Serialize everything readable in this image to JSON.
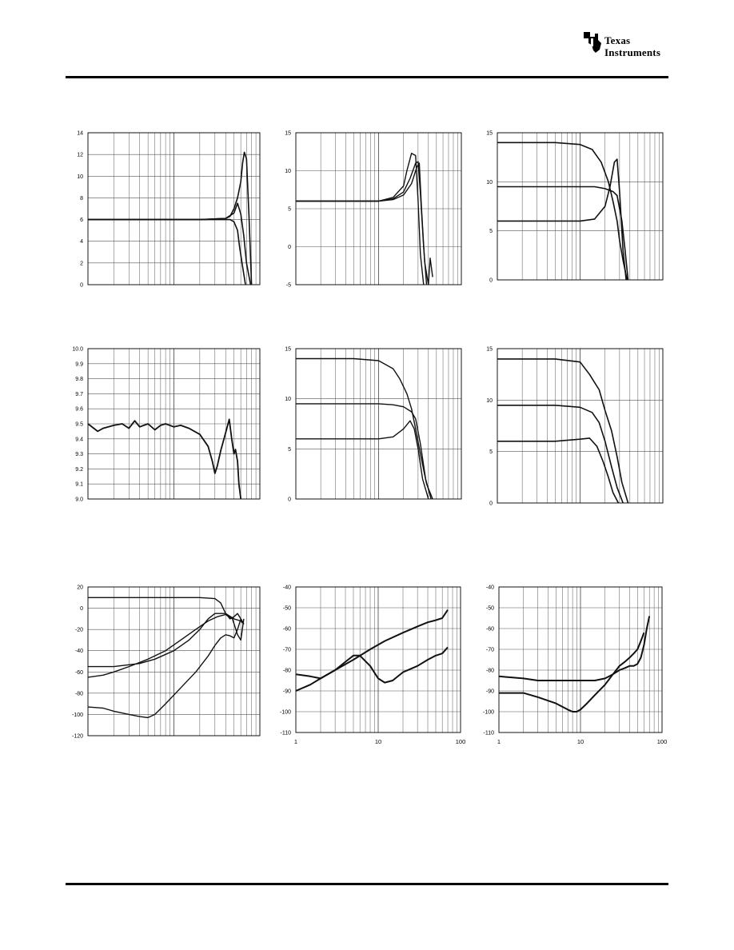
{
  "logo": {
    "line1": "Texas",
    "line2": "Instruments",
    "mark": "ti-logo-icon"
  },
  "chart_data": [
    {
      "id": "c1",
      "type": "line",
      "ylim": [
        0,
        14
      ],
      "yticks": [
        0,
        2,
        4,
        6,
        8,
        10,
        12,
        14
      ],
      "xlog": true,
      "xdecades": 2,
      "xticks_labeled": false,
      "series": [
        {
          "x": [
            1,
            5,
            20,
            40,
            45,
            50,
            55,
            60,
            63,
            66,
            70,
            75,
            80
          ],
          "y": [
            6,
            6,
            6,
            6.1,
            6.3,
            7,
            8,
            9.5,
            11.2,
            12.2,
            11.6,
            6,
            0
          ]
        },
        {
          "x": [
            1,
            5,
            20,
            40,
            45,
            50,
            55,
            58,
            62,
            68
          ],
          "y": [
            6,
            6,
            6,
            6,
            6,
            5.8,
            5,
            3.5,
            2,
            0
          ]
        },
        {
          "x": [
            1,
            5,
            20,
            40,
            50,
            55,
            60,
            65,
            70,
            78
          ],
          "y": [
            6,
            6,
            6,
            6.1,
            6.6,
            7.5,
            6.5,
            4.5,
            2,
            0
          ]
        }
      ]
    },
    {
      "id": "c2",
      "type": "line",
      "ylim": [
        -5,
        15
      ],
      "yticks": [
        -5,
        0,
        5,
        10,
        15
      ],
      "xlog": true,
      "xdecades": 2,
      "xticks_labeled": false,
      "series": [
        {
          "x": [
            1,
            3,
            10,
            15,
            20,
            22,
            25,
            28,
            30,
            32,
            35
          ],
          "y": [
            6,
            6,
            6,
            6.5,
            8,
            10,
            12.3,
            12,
            6,
            -1,
            -5
          ]
        },
        {
          "x": [
            1,
            3,
            10,
            15,
            20,
            24,
            28,
            30,
            32,
            35,
            38
          ],
          "y": [
            6,
            6,
            6,
            6.3,
            7.2,
            9,
            11,
            11.2,
            7,
            0,
            -5
          ]
        },
        {
          "x": [
            1,
            3,
            10,
            15,
            20,
            25,
            29,
            31,
            33,
            36,
            40,
            42,
            45
          ],
          "y": [
            6,
            6,
            6,
            6.2,
            6.8,
            8.3,
            10.5,
            11,
            5,
            -2,
            -5,
            -1.5,
            -4
          ]
        }
      ]
    },
    {
      "id": "c3",
      "type": "line",
      "ylim": [
        0,
        15
      ],
      "yticks": [
        0,
        5,
        10,
        15
      ],
      "xlog": true,
      "xdecades": 2,
      "xticks_labeled": false,
      "series": [
        {
          "x": [
            1,
            5,
            10,
            14,
            18,
            22,
            25,
            28,
            30,
            33,
            37
          ],
          "y": [
            14,
            14,
            13.8,
            13.3,
            12,
            10,
            8,
            6,
            4,
            2,
            0
          ]
        },
        {
          "x": [
            1,
            5,
            10,
            15,
            20,
            25,
            28,
            32,
            35,
            38
          ],
          "y": [
            9.5,
            9.5,
            9.5,
            9.5,
            9.3,
            9,
            8.6,
            6,
            3,
            0
          ]
        },
        {
          "x": [
            1,
            5,
            10,
            15,
            20,
            23,
            26,
            28,
            30,
            33,
            36
          ],
          "y": [
            6,
            6,
            6,
            6.2,
            7.5,
            9.5,
            12,
            12.3,
            9,
            3,
            0
          ]
        }
      ]
    },
    {
      "id": "c4",
      "type": "line",
      "ylim": [
        9.0,
        10.0
      ],
      "yticks": [
        9.0,
        9.1,
        9.2,
        9.3,
        9.4,
        9.5,
        9.6,
        9.7,
        9.8,
        9.9,
        10.0
      ],
      "xlog": true,
      "xdecades": 2,
      "xticks_labeled": false,
      "series": [
        {
          "x": [
            1,
            1.3,
            1.5,
            2,
            2.5,
            3,
            3.5,
            4,
            5,
            6,
            7,
            8,
            10,
            12,
            15,
            20,
            25,
            28,
            30,
            32,
            35,
            40,
            44,
            47,
            50,
            52,
            55,
            57,
            60
          ],
          "y": [
            9.5,
            9.45,
            9.47,
            9.49,
            9.5,
            9.47,
            9.52,
            9.48,
            9.5,
            9.46,
            9.49,
            9.5,
            9.48,
            9.49,
            9.47,
            9.43,
            9.35,
            9.25,
            9.17,
            9.22,
            9.32,
            9.44,
            9.53,
            9.4,
            9.3,
            9.33,
            9.25,
            9.1,
            9.0
          ]
        }
      ]
    },
    {
      "id": "c5",
      "type": "line",
      "ylim": [
        0,
        15
      ],
      "yticks": [
        0,
        5,
        10,
        15
      ],
      "xlog": true,
      "xdecades": 2,
      "xticks_labeled": false,
      "series": [
        {
          "x": [
            1,
            5,
            10,
            15,
            18,
            22,
            25,
            28,
            32,
            38,
            45
          ],
          "y": [
            14,
            14,
            13.8,
            13,
            12,
            10.5,
            9,
            7,
            4.5,
            1.5,
            0
          ]
        },
        {
          "x": [
            1,
            5,
            10,
            15,
            20,
            25,
            28,
            32,
            37,
            43
          ],
          "y": [
            9.5,
            9.5,
            9.5,
            9.4,
            9.2,
            8.7,
            8,
            5.5,
            2,
            0
          ]
        },
        {
          "x": [
            1,
            5,
            10,
            15,
            20,
            24,
            27,
            30,
            34,
            40
          ],
          "y": [
            6,
            6,
            6,
            6.2,
            7,
            7.8,
            7,
            5,
            2,
            0
          ]
        }
      ]
    },
    {
      "id": "c6",
      "type": "line",
      "ylim": [
        0,
        15
      ],
      "yticks": [
        0,
        5,
        10,
        15
      ],
      "xlog": true,
      "xdecades": 2,
      "xticks_labeled": false,
      "series": [
        {
          "x": [
            1,
            5,
            10,
            13,
            17,
            20,
            24,
            28,
            32,
            38
          ],
          "y": [
            14,
            14,
            13.7,
            12.5,
            11,
            9,
            7,
            4.5,
            2,
            0
          ]
        },
        {
          "x": [
            1,
            5,
            10,
            14,
            17,
            20,
            24,
            28,
            33
          ],
          "y": [
            9.5,
            9.5,
            9.3,
            8.8,
            7.8,
            6,
            3.5,
            1.5,
            0
          ]
        },
        {
          "x": [
            1,
            5,
            10,
            13,
            16,
            19,
            22,
            25,
            29
          ],
          "y": [
            6,
            6,
            6.2,
            6.3,
            5.5,
            4,
            2.5,
            1,
            0
          ]
        }
      ]
    },
    {
      "id": "c7",
      "type": "line",
      "ylim": [
        -120,
        20
      ],
      "yticks": [
        -120,
        -100,
        -80,
        -60,
        -40,
        -20,
        0,
        20
      ],
      "xlog": true,
      "xdecades": 2,
      "xticks_labeled": false,
      "series": [
        {
          "x": [
            1,
            5,
            10,
            20,
            30,
            35,
            40,
            45,
            50,
            55,
            60,
            65
          ],
          "y": [
            10,
            10,
            10,
            10,
            9,
            5,
            -5,
            -10,
            -8,
            -5,
            -10,
            -15
          ]
        },
        {
          "x": [
            1,
            2,
            4,
            6,
            10,
            15,
            20,
            25,
            30,
            40,
            50,
            60,
            65
          ],
          "y": [
            -55,
            -55,
            -52,
            -48,
            -40,
            -30,
            -20,
            -10,
            -5,
            -5,
            -10,
            -12,
            -15
          ]
        },
        {
          "x": [
            1,
            1.5,
            2,
            3,
            5,
            8,
            12,
            18,
            25,
            32,
            40,
            48,
            55,
            60,
            65
          ],
          "y": [
            -65,
            -63,
            -60,
            -55,
            -48,
            -40,
            -30,
            -20,
            -12,
            -8,
            -6,
            -10,
            -25,
            -30,
            -10
          ]
        },
        {
          "x": [
            1,
            1.5,
            2,
            3,
            4,
            5,
            6,
            8,
            12,
            18,
            25,
            30,
            35,
            40,
            45,
            50,
            55,
            60,
            65
          ],
          "y": [
            -93,
            -94,
            -97,
            -100,
            -102,
            -103,
            -100,
            -90,
            -75,
            -60,
            -45,
            -35,
            -28,
            -25,
            -26,
            -28,
            -20,
            -10,
            -15
          ]
        }
      ]
    },
    {
      "id": "c8",
      "type": "line",
      "ylim": [
        -110,
        -40
      ],
      "yticks": [
        -110,
        -100,
        -90,
        -80,
        -70,
        -60,
        -50,
        -40
      ],
      "xlog": true,
      "xdecades": 2,
      "xticks_labeled": true,
      "xticks": [
        "1",
        "10",
        "100"
      ],
      "series": [
        {
          "x": [
            1,
            1.5,
            2,
            3,
            5,
            8,
            12,
            20,
            30,
            40,
            50,
            60,
            70
          ],
          "y": [
            -90,
            -87,
            -84,
            -80,
            -75,
            -70,
            -66,
            -62,
            -59,
            -57,
            -56,
            -55,
            -51
          ]
        },
        {
          "x": [
            1,
            1.5,
            2,
            3,
            4,
            5,
            6,
            8,
            10,
            12,
            15,
            20,
            30,
            40,
            50,
            60,
            70
          ],
          "y": [
            -82,
            -83,
            -84,
            -80,
            -76,
            -73,
            -73,
            -78,
            -84,
            -86,
            -85,
            -81,
            -78,
            -75,
            -73,
            -72,
            -69
          ]
        }
      ]
    },
    {
      "id": "c9",
      "type": "line",
      "ylim": [
        -110,
        -40
      ],
      "yticks": [
        -110,
        -100,
        -90,
        -80,
        -70,
        -60,
        -50,
        -40
      ],
      "xlog": true,
      "xdecades": 2,
      "xticks_labeled": true,
      "xticks": [
        "1",
        "10",
        "100"
      ],
      "series": [
        {
          "x": [
            1,
            2,
            3,
            5,
            8,
            10,
            15,
            20,
            25,
            30,
            35,
            40,
            45,
            50,
            55,
            60,
            65,
            70
          ],
          "y": [
            -83,
            -84,
            -85,
            -85,
            -85,
            -85,
            -85,
            -84,
            -82,
            -80,
            -79,
            -78,
            -78,
            -77,
            -74,
            -68,
            -60,
            -54
          ]
        },
        {
          "x": [
            1,
            2,
            3,
            5,
            7,
            8,
            9,
            10,
            12,
            15,
            20,
            25,
            30,
            35,
            40,
            45,
            50,
            55,
            60
          ],
          "y": [
            -91,
            -91,
            -93,
            -96,
            -99,
            -100,
            -100,
            -99,
            -96,
            -92,
            -87,
            -82,
            -78,
            -76,
            -74,
            -72,
            -70,
            -66,
            -62
          ]
        }
      ]
    }
  ]
}
